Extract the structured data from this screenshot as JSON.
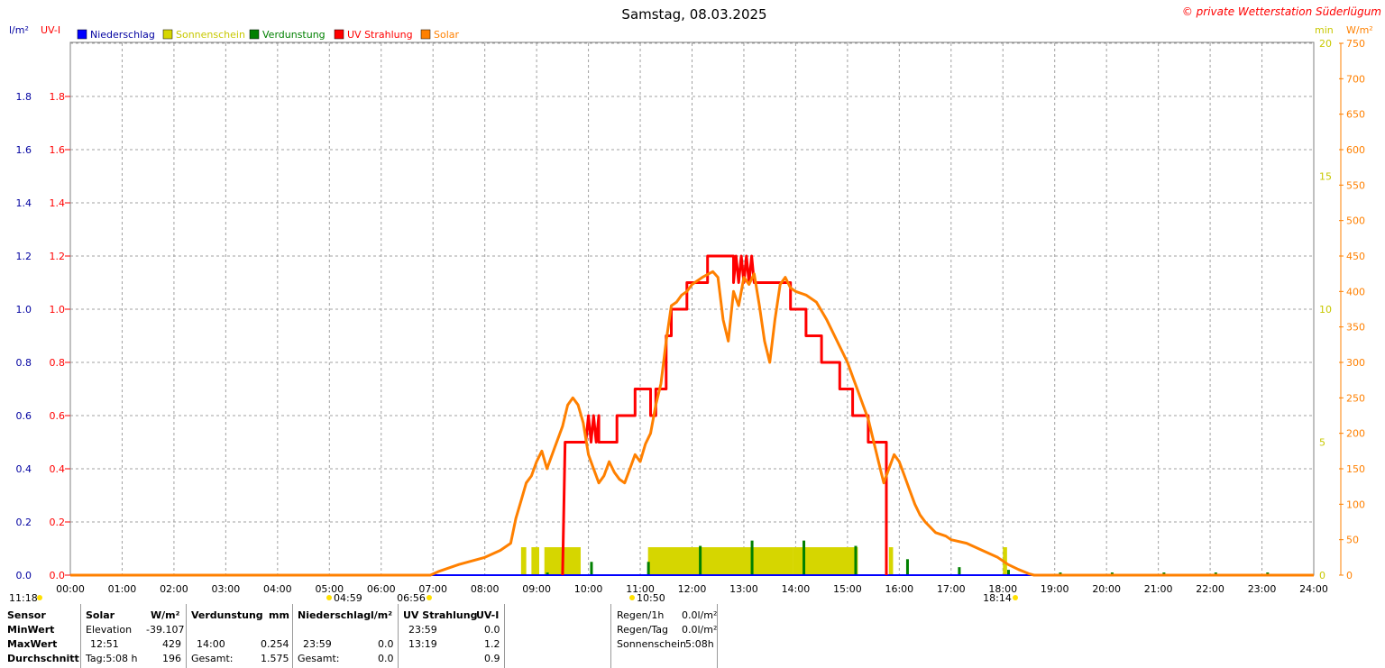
{
  "header": {
    "title": "Samstag, 08.03.2025",
    "copyright": "© private Wetterstation Süderlügum",
    "left_unit_1": "l/m²",
    "left_unit_2": "UV-I",
    "right_unit_1": "min",
    "right_unit_2": "W/m²"
  },
  "legend": [
    {
      "label": "Niederschlag",
      "color": "#0000ff"
    },
    {
      "label": "Sonnenschein",
      "color": "#d6d600"
    },
    {
      "label": "Verdunstung",
      "color": "#008000"
    },
    {
      "label": "UV Strahlung",
      "color": "#ff0000"
    },
    {
      "label": "Solar",
      "color": "#ff8000"
    }
  ],
  "colors": {
    "niederschlag_axis": "#0000a0",
    "uv": "#ff0000",
    "solar": "#ff8000",
    "sonnenschein": "#d6d600",
    "verdunstung": "#008000",
    "grid": "#a0a0a0"
  },
  "chart_data": {
    "type": "line",
    "title": "Samstag, 08.03.2025",
    "x_range": [
      "00:00",
      "24:00"
    ],
    "x_ticks": [
      "00:00",
      "01:00",
      "02:00",
      "03:00",
      "04:00",
      "05:00",
      "06:00",
      "07:00",
      "08:00",
      "09:00",
      "10:00",
      "11:00",
      "12:00",
      "13:00",
      "14:00",
      "15:00",
      "16:00",
      "17:00",
      "18:00",
      "19:00",
      "20:00",
      "21:00",
      "22:00",
      "23:00",
      "24:00"
    ],
    "left_axis": {
      "label": "l/m²",
      "ylim": [
        0,
        2
      ],
      "ticks": [
        "0.0",
        "0.2",
        "0.4",
        "0.6",
        "0.8",
        "1.0",
        "1.2",
        "1.4",
        "1.6",
        "1.8"
      ]
    },
    "uv_axis": {
      "label": "UV-I",
      "ylim": [
        0,
        2
      ],
      "ticks": [
        "0.0",
        "0.2",
        "0.4",
        "0.6",
        "0.8",
        "1.0",
        "1.2",
        "1.4",
        "1.6",
        "1.8"
      ]
    },
    "minutes_axis": {
      "label": "min",
      "ylim": [
        0,
        20
      ],
      "ticks": [
        "0",
        "5",
        "10",
        "15",
        "20"
      ]
    },
    "solar_axis": {
      "label": "W/m²",
      "ylim": [
        0,
        750
      ],
      "ticks": [
        "0",
        "50",
        "100",
        "150",
        "200",
        "250",
        "300",
        "350",
        "400",
        "450",
        "500",
        "550",
        "600",
        "650",
        "700",
        "750"
      ]
    },
    "grid": true,
    "series": [
      {
        "name": "UV Strahlung",
        "axis": "uv",
        "type": "step",
        "points": [
          [
            9.5,
            0
          ],
          [
            9.55,
            0.5
          ],
          [
            9.95,
            0.5
          ],
          [
            10.0,
            0.6
          ],
          [
            10.05,
            0.5
          ],
          [
            10.1,
            0.6
          ],
          [
            10.15,
            0.5
          ],
          [
            10.2,
            0.6
          ],
          [
            10.2,
            0.5
          ],
          [
            10.55,
            0.5
          ],
          [
            10.55,
            0.6
          ],
          [
            10.55,
            0.6
          ],
          [
            10.9,
            0.6
          ],
          [
            10.9,
            0.7
          ],
          [
            11.2,
            0.7
          ],
          [
            11.2,
            0.6
          ],
          [
            11.3,
            0.6
          ],
          [
            11.3,
            0.7
          ],
          [
            11.5,
            0.7
          ],
          [
            11.5,
            0.9
          ],
          [
            11.6,
            0.9
          ],
          [
            11.6,
            1.0
          ],
          [
            11.9,
            1.0
          ],
          [
            11.9,
            1.1
          ],
          [
            12.3,
            1.1
          ],
          [
            12.3,
            1.2
          ],
          [
            12.8,
            1.2
          ],
          [
            12.8,
            1.1
          ],
          [
            12.85,
            1.2
          ],
          [
            12.9,
            1.1
          ],
          [
            12.95,
            1.2
          ],
          [
            13.0,
            1.1
          ],
          [
            13.05,
            1.2
          ],
          [
            13.1,
            1.1
          ],
          [
            13.15,
            1.2
          ],
          [
            13.2,
            1.1
          ],
          [
            13.9,
            1.1
          ],
          [
            13.9,
            1.0
          ],
          [
            14.2,
            1.0
          ],
          [
            14.2,
            0.9
          ],
          [
            14.5,
            0.9
          ],
          [
            14.5,
            0.8
          ],
          [
            14.85,
            0.8
          ],
          [
            14.85,
            0.7
          ],
          [
            15.1,
            0.7
          ],
          [
            15.1,
            0.6
          ],
          [
            15.4,
            0.6
          ],
          [
            15.4,
            0.5
          ],
          [
            15.75,
            0.5
          ],
          [
            15.75,
            0
          ]
        ]
      },
      {
        "name": "Solar",
        "axis": "solar",
        "type": "line",
        "points": [
          [
            0,
            0
          ],
          [
            6.95,
            0
          ],
          [
            7.1,
            5
          ],
          [
            7.5,
            15
          ],
          [
            8.0,
            25
          ],
          [
            8.3,
            35
          ],
          [
            8.5,
            45
          ],
          [
            8.6,
            80
          ],
          [
            8.7,
            105
          ],
          [
            8.8,
            130
          ],
          [
            8.9,
            140
          ],
          [
            9.0,
            160
          ],
          [
            9.1,
            175
          ],
          [
            9.2,
            150
          ],
          [
            9.35,
            180
          ],
          [
            9.5,
            210
          ],
          [
            9.6,
            240
          ],
          [
            9.7,
            250
          ],
          [
            9.8,
            240
          ],
          [
            9.9,
            215
          ],
          [
            10.0,
            170
          ],
          [
            10.1,
            150
          ],
          [
            10.2,
            130
          ],
          [
            10.3,
            140
          ],
          [
            10.4,
            160
          ],
          [
            10.5,
            145
          ],
          [
            10.6,
            135
          ],
          [
            10.7,
            130
          ],
          [
            10.8,
            150
          ],
          [
            10.9,
            170
          ],
          [
            11.0,
            160
          ],
          [
            11.1,
            185
          ],
          [
            11.2,
            200
          ],
          [
            11.3,
            240
          ],
          [
            11.4,
            270
          ],
          [
            11.5,
            330
          ],
          [
            11.6,
            380
          ],
          [
            11.7,
            385
          ],
          [
            11.8,
            395
          ],
          [
            11.9,
            400
          ],
          [
            12.0,
            410
          ],
          [
            12.2,
            420
          ],
          [
            12.4,
            428
          ],
          [
            12.5,
            420
          ],
          [
            12.6,
            360
          ],
          [
            12.7,
            330
          ],
          [
            12.8,
            400
          ],
          [
            12.9,
            380
          ],
          [
            13.0,
            420
          ],
          [
            13.1,
            410
          ],
          [
            13.2,
            425
          ],
          [
            13.3,
            380
          ],
          [
            13.4,
            330
          ],
          [
            13.5,
            300
          ],
          [
            13.6,
            360
          ],
          [
            13.7,
            410
          ],
          [
            13.8,
            420
          ],
          [
            13.9,
            405
          ],
          [
            14.0,
            400
          ],
          [
            14.2,
            395
          ],
          [
            14.4,
            385
          ],
          [
            14.6,
            360
          ],
          [
            14.8,
            330
          ],
          [
            15.0,
            300
          ],
          [
            15.1,
            280
          ],
          [
            15.2,
            260
          ],
          [
            15.3,
            240
          ],
          [
            15.4,
            220
          ],
          [
            15.5,
            190
          ],
          [
            15.6,
            160
          ],
          [
            15.7,
            130
          ],
          [
            15.8,
            150
          ],
          [
            15.9,
            170
          ],
          [
            16.0,
            160
          ],
          [
            16.1,
            140
          ],
          [
            16.2,
            120
          ],
          [
            16.3,
            100
          ],
          [
            16.4,
            85
          ],
          [
            16.5,
            75
          ],
          [
            16.7,
            60
          ],
          [
            16.9,
            55
          ],
          [
            17.0,
            50
          ],
          [
            17.3,
            45
          ],
          [
            17.6,
            35
          ],
          [
            17.9,
            25
          ],
          [
            18.1,
            15
          ],
          [
            18.3,
            8
          ],
          [
            18.5,
            2
          ],
          [
            18.6,
            0
          ],
          [
            24,
            0
          ]
        ]
      }
    ],
    "sonnenschein_bars": [
      [
        8.7,
        8.8,
        1
      ],
      [
        8.9,
        9.05,
        1
      ],
      [
        9.15,
        9.85,
        1
      ],
      [
        11.15,
        13.95,
        1
      ],
      [
        13.95,
        15.2,
        1
      ],
      [
        15.8,
        15.88,
        1
      ],
      [
        18.0,
        18.08,
        1
      ]
    ],
    "verdunstung_bars": [
      [
        9.2,
        0.01
      ],
      [
        10.05,
        0.05
      ],
      [
        11.15,
        0.05
      ],
      [
        12.15,
        0.11
      ],
      [
        13.15,
        0.13
      ],
      [
        14.15,
        0.13
      ],
      [
        15.15,
        0.11
      ],
      [
        16.15,
        0.06
      ],
      [
        17.15,
        0.03
      ],
      [
        18.1,
        0.02
      ],
      [
        19.1,
        0.01
      ],
      [
        20.1,
        0.01
      ],
      [
        21.1,
        0.01
      ],
      [
        22.1,
        0.01
      ],
      [
        23.1,
        0.01
      ]
    ],
    "markers": [
      {
        "time": "11:18",
        "text": "11:18"
      },
      {
        "time": "04:59",
        "text": "04:59"
      },
      {
        "time": "06:56",
        "text": "06:56"
      },
      {
        "time": "10:50",
        "text": "10:50"
      },
      {
        "time": "18:14",
        "text": "18:14"
      }
    ]
  },
  "stats": {
    "rows": [
      "Sensor",
      "MinWert",
      "MaxWert",
      "Durchschnitt"
    ],
    "solar": {
      "header": "Solar",
      "unit": "W/m²",
      "min_label": "Elevation",
      "min_value": "-39.107",
      "max_time": "12:51",
      "max_value": "429",
      "avg_label": "Tag:5:08 h",
      "avg_value": "196"
    },
    "verdunstung": {
      "header": "Verdunstung",
      "unit": "mm",
      "max_time": "14:00",
      "max_value": "0.254",
      "total_label": "Gesamt:",
      "total_value": "1.575"
    },
    "niederschlag": {
      "header": "Niederschlag",
      "unit": "l/m²",
      "max_time": "23:59",
      "max_value": "0.0",
      "total_label": "Gesamt:",
      "total_value": "0.0"
    },
    "uv": {
      "header": "UV Strahlung",
      "unit": "UV-I",
      "min_time": "23:59",
      "min_value": "0.0",
      "max_time": "13:19",
      "max_value": "1.2",
      "avg_value": "0.9"
    },
    "rain": {
      "r1_label": "Regen/1h",
      "r1_value": "0.0l/m²",
      "r2_label": "Regen/Tag",
      "r2_value": "0.0l/m²",
      "r3_label": "Sonnenschein",
      "r3_value": "5:08h"
    }
  }
}
